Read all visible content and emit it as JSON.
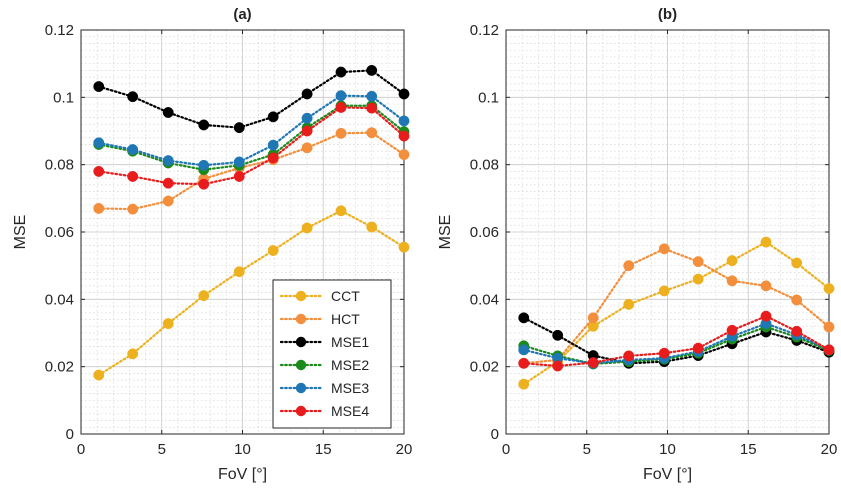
{
  "chart_data": [
    {
      "type": "line",
      "title": "(a)",
      "xlabel": "FoV [°]",
      "ylabel": "MSE",
      "xlim": [
        0,
        20
      ],
      "ylim": [
        0,
        0.12
      ],
      "xticks": [
        0,
        5,
        10,
        15,
        20
      ],
      "xtick_labels": [
        "0",
        "5",
        "10",
        "15",
        "20"
      ],
      "yticks": [
        0,
        0.02,
        0.04,
        0.06,
        0.08,
        0.1,
        0.12
      ],
      "ytick_labels": [
        "0",
        "0.02",
        "0.04",
        "0.06",
        "0.08",
        "0.1",
        "0.12"
      ],
      "grid": true,
      "minor_grid": true,
      "legend_position": "bottom-right",
      "x": [
        1.1,
        3.2,
        5.4,
        7.6,
        9.8,
        11.9,
        14.0,
        16.1,
        18.0,
        20.0
      ],
      "series": [
        {
          "name": "CCT",
          "color": "#EDB120",
          "values": [
            0.0175,
            0.0238,
            0.0328,
            0.0411,
            0.0482,
            0.0545,
            0.0612,
            0.0663,
            0.0615,
            0.0555
          ]
        },
        {
          "name": "HCT",
          "color": "#F28E3C",
          "values": [
            0.067,
            0.0668,
            0.0692,
            0.0758,
            0.079,
            0.0815,
            0.085,
            0.0893,
            0.0895,
            0.083
          ]
        },
        {
          "name": "MSE1",
          "color": "#000000",
          "values": [
            0.1032,
            0.1002,
            0.0955,
            0.0918,
            0.091,
            0.0942,
            0.101,
            0.1075,
            0.108,
            0.101
          ]
        },
        {
          "name": "MSE2",
          "color": "#1A8A1A",
          "values": [
            0.086,
            0.084,
            0.0805,
            0.0785,
            0.0798,
            0.083,
            0.091,
            0.0975,
            0.0975,
            0.0898
          ]
        },
        {
          "name": "MSE3",
          "color": "#1F77B4",
          "values": [
            0.0865,
            0.0845,
            0.0812,
            0.0798,
            0.0808,
            0.0858,
            0.0938,
            0.1005,
            0.1003,
            0.093
          ]
        },
        {
          "name": "MSE4",
          "color": "#E81C1C",
          "values": [
            0.078,
            0.0765,
            0.0745,
            0.0742,
            0.0765,
            0.082,
            0.09,
            0.097,
            0.0968,
            0.0885
          ]
        }
      ]
    },
    {
      "type": "line",
      "title": "(b)",
      "xlabel": "FoV [°]",
      "ylabel": "MSE",
      "xlim": [
        0,
        20
      ],
      "ylim": [
        0,
        0.12
      ],
      "xticks": [
        0,
        5,
        10,
        15,
        20
      ],
      "xtick_labels": [
        "0",
        "5",
        "10",
        "15",
        "20"
      ],
      "yticks": [
        0,
        0.02,
        0.04,
        0.06,
        0.08,
        0.1,
        0.12
      ],
      "ytick_labels": [
        "0",
        "0.02",
        "0.04",
        "0.06",
        "0.08",
        "0.1",
        "0.12"
      ],
      "grid": true,
      "minor_grid": true,
      "x": [
        1.1,
        3.2,
        5.4,
        7.6,
        9.8,
        11.9,
        14.0,
        16.1,
        18.0,
        20.0
      ],
      "series": [
        {
          "name": "CCT",
          "color": "#EDB120",
          "values": [
            0.0148,
            0.0215,
            0.032,
            0.0385,
            0.0425,
            0.046,
            0.0515,
            0.057,
            0.0508,
            0.0432
          ]
        },
        {
          "name": "HCT",
          "color": "#F28E3C",
          "values": [
            0.021,
            0.022,
            0.0345,
            0.05,
            0.055,
            0.0512,
            0.0455,
            0.044,
            0.0398,
            0.0318
          ]
        },
        {
          "name": "MSE1",
          "color": "#000000",
          "values": [
            0.0345,
            0.0293,
            0.0233,
            0.021,
            0.0215,
            0.0233,
            0.0268,
            0.0303,
            0.0278,
            0.0243
          ]
        },
        {
          "name": "MSE2",
          "color": "#1A8A1A",
          "values": [
            0.0262,
            0.0232,
            0.0208,
            0.0215,
            0.0222,
            0.024,
            0.0282,
            0.0318,
            0.0288,
            0.0248
          ]
        },
        {
          "name": "MSE3",
          "color": "#1F77B4",
          "values": [
            0.025,
            0.0225,
            0.021,
            0.022,
            0.0225,
            0.0245,
            0.029,
            0.0328,
            0.0295,
            0.025
          ]
        },
        {
          "name": "MSE4",
          "color": "#E81C1C",
          "values": [
            0.021,
            0.0202,
            0.0212,
            0.0232,
            0.024,
            0.0255,
            0.0308,
            0.035,
            0.0305,
            0.025
          ]
        }
      ]
    }
  ]
}
